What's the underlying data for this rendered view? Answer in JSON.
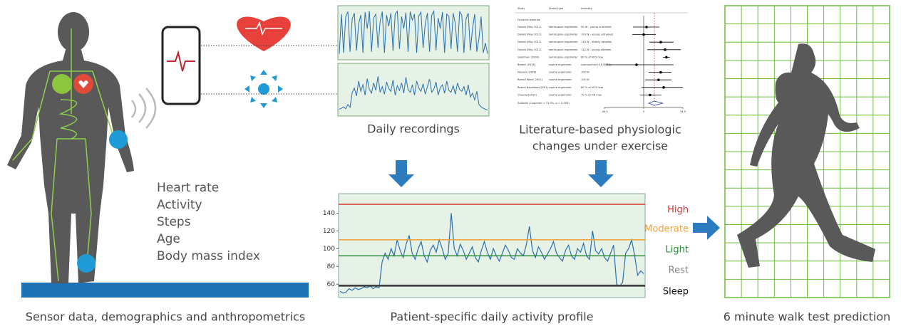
{
  "left": {
    "features": [
      "Heart rate",
      "Activity",
      "Steps",
      "Age",
      "Body mass index"
    ],
    "caption": "Sensor data, demographics and anthropometrics"
  },
  "recordings": {
    "caption": "Daily recordings",
    "series": [
      {
        "values": [
          8,
          90,
          10,
          85,
          95,
          12,
          80,
          92,
          15,
          70,
          88,
          10,
          94,
          60,
          96,
          12,
          82,
          90,
          20,
          75,
          95,
          10,
          88,
          65,
          92,
          14,
          90,
          96,
          18,
          85,
          60,
          93,
          12,
          95,
          78,
          90,
          10,
          86,
          94,
          20,
          70,
          92,
          12,
          88,
          96,
          15,
          82,
          60,
          94,
          10,
          90,
          85,
          18,
          92,
          70,
          12,
          95,
          88,
          10,
          80,
          92,
          15,
          60,
          90,
          12,
          40,
          85,
          10,
          30,
          8
        ]
      },
      {
        "values": [
          10,
          12,
          15,
          11,
          20,
          14,
          45,
          55,
          38,
          70,
          48,
          62,
          40,
          75,
          52,
          44,
          66,
          50,
          80,
          46,
          58,
          42,
          68,
          54,
          48,
          72,
          40,
          60,
          50,
          66,
          44,
          78,
          52,
          46,
          62,
          40,
          70,
          55,
          48,
          64,
          42,
          58,
          74,
          46,
          52,
          68,
          40,
          56,
          62,
          44,
          70,
          50,
          46,
          60,
          42,
          66,
          52,
          48,
          58,
          40,
          62,
          36,
          44,
          30,
          48,
          20,
          15,
          12,
          10,
          8
        ]
      }
    ]
  },
  "literature": {
    "caption_lines": [
      "Literature-based physiologic",
      "changes under exercise"
    ],
    "forest": {
      "headers": [
        "Study",
        "Stress type",
        "Intensity"
      ],
      "group": "Dynamic exercise",
      "rows": [
        {
          "study": "Donati (May 2011)",
          "stress": "semisupine ergometer",
          "intensity": "90 W - young untrained",
          "est": 2.5,
          "lo": -9.4,
          "hi": 13.8
        },
        {
          "study": "Donati (May 2011)",
          "stress": "semisupine ergometer",
          "intensity": "103 W - young untrained",
          "est": 0,
          "lo": -10,
          "hi": 10.7
        },
        {
          "study": "Donati (May 2011)",
          "stress": "semisupine ergometer",
          "intensity": "110 W - elderly athletes",
          "est": 15,
          "lo": 5,
          "hi": 26.3
        },
        {
          "study": "Donati (May 2011)",
          "stress": "semisupine ergometer",
          "intensity": "122 W - young athletes",
          "est": 18.8,
          "lo": 3.1,
          "hi": 32.6
        },
        {
          "study": "Goodman (2000)",
          "stress": "semisupine ergometer",
          "intensity": "60 % of VO2 max",
          "est": 20,
          "lo": 17,
          "hi": 23
        },
        {
          "study": "Barber (2016)",
          "stress": "supine ergometer",
          "intensity": "submaximal (4.8 METS)",
          "est": -6.3,
          "lo": -33,
          "hi": 26.3
        },
        {
          "study": "Nassen (1998)",
          "stress": "supine ergometer",
          "intensity": "100 W",
          "est": 15,
          "lo": 4.4,
          "hi": 24.5
        },
        {
          "study": "Roest (March 2001)",
          "stress": "supine ergometer",
          "intensity": "100 W",
          "est": 13,
          "lo": 1.3,
          "hi": 24.5
        },
        {
          "study": "Roest (November 2001)",
          "stress": "supine ergometer",
          "intensity": "80 % of VO2 max",
          "est": 17.6,
          "lo": -1.9,
          "hi": 34.5
        },
        {
          "study": "Cheung (2012)",
          "stress": "supine ergometer",
          "intensity": "70 % of HR max",
          "est": 5.6,
          "lo": -3.1,
          "hi": 15.7
        }
      ],
      "subtotal": {
        "label": "Subtotal  (I-squared = 73.0%, p = 0.000)",
        "est": 9.4,
        "lo": 4.4,
        "hi": 17
      },
      "xlim": [
        -34.5,
        34.5
      ],
      "xticks": [
        -34.5,
        0,
        34.5
      ]
    }
  },
  "chart_data": {
    "type": "line",
    "caption": "Patient-specific daily activity profile",
    "color": "#2a6fb0",
    "ylim": [
      45,
      162
    ],
    "yticks": [
      60,
      80,
      100,
      120,
      140
    ],
    "values": [
      52,
      50,
      51,
      55,
      53,
      56,
      54,
      55,
      57,
      56,
      58,
      55,
      57,
      56,
      85,
      95,
      88,
      100,
      92,
      110,
      98,
      90,
      105,
      115,
      95,
      88,
      100,
      108,
      92,
      85,
      98,
      104,
      96,
      110,
      100,
      88,
      95,
      140,
      100,
      92,
      105,
      98,
      88,
      95,
      102,
      90,
      85,
      98,
      108,
      96,
      88,
      100,
      92,
      86,
      95,
      104,
      98,
      90,
      88,
      100,
      95,
      92,
      105,
      125,
      98,
      90,
      102,
      96,
      88,
      94,
      100,
      108,
      95,
      90,
      86,
      98,
      104,
      92,
      88,
      100,
      96,
      106,
      92,
      88,
      120,
      98,
      94,
      100,
      90,
      86,
      95,
      104,
      60,
      58,
      62,
      95,
      100,
      110,
      92,
      70,
      75,
      72
    ],
    "thresholds": [
      {
        "name": "High",
        "value": 150,
        "color": "#d9302c"
      },
      {
        "name": "Moderate",
        "value": 110,
        "color": "#f0a030"
      },
      {
        "name": "Light",
        "value": 92,
        "color": "#2e8b3a"
      },
      {
        "name": "Rest",
        "value": 59,
        "color": "#888888"
      },
      {
        "name": "Sleep",
        "value": 58,
        "color": "#111111"
      }
    ]
  },
  "walk": {
    "caption": "6 minute walk test prediction"
  }
}
